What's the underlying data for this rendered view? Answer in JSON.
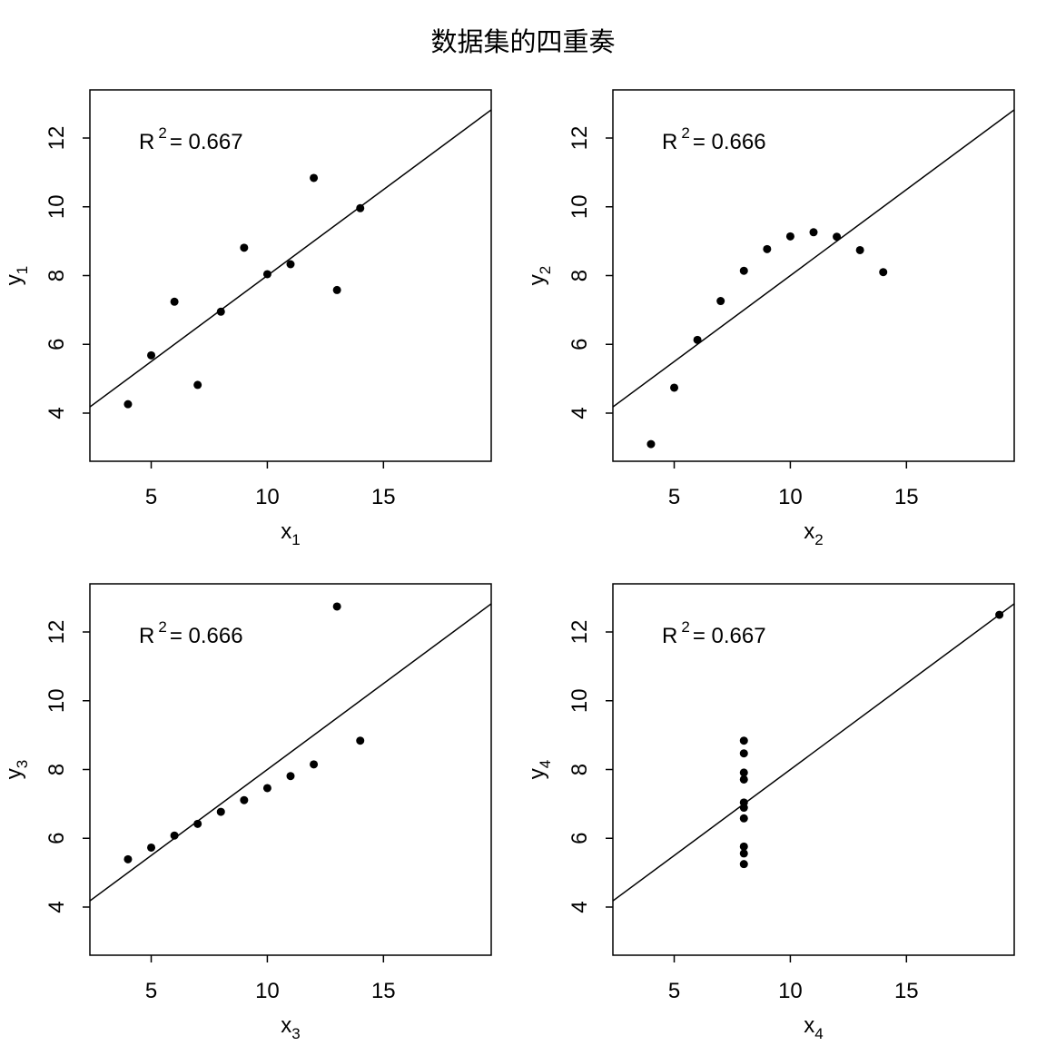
{
  "title": "数据集的四重奏",
  "chart_data": [
    {
      "type": "scatter",
      "xlabel": "x",
      "xlabel_sub": "1",
      "ylabel": "y",
      "ylabel_sub": "1",
      "annotation": {
        "prefix": "R",
        "sup": "2",
        "text": "= 0.667"
      },
      "xlim": [
        3,
        19
      ],
      "ylim": [
        3,
        13
      ],
      "xticks": [
        5,
        10,
        15
      ],
      "yticks": [
        4,
        6,
        8,
        10,
        12
      ],
      "x": [
        10,
        8,
        13,
        9,
        11,
        14,
        6,
        4,
        12,
        7,
        5
      ],
      "y": [
        8.04,
        6.95,
        7.58,
        8.81,
        8.33,
        9.96,
        7.24,
        4.26,
        10.84,
        4.82,
        5.68
      ],
      "fit": {
        "intercept": 3.0,
        "slope": 0.5
      }
    },
    {
      "type": "scatter",
      "xlabel": "x",
      "xlabel_sub": "2",
      "ylabel": "y",
      "ylabel_sub": "2",
      "annotation": {
        "prefix": "R",
        "sup": "2",
        "text": "= 0.666"
      },
      "xlim": [
        3,
        19
      ],
      "ylim": [
        3,
        13
      ],
      "xticks": [
        5,
        10,
        15
      ],
      "yticks": [
        4,
        6,
        8,
        10,
        12
      ],
      "x": [
        10,
        8,
        13,
        9,
        11,
        14,
        6,
        4,
        12,
        7,
        5
      ],
      "y": [
        9.14,
        8.14,
        8.74,
        8.77,
        9.26,
        8.1,
        6.13,
        3.1,
        9.13,
        7.26,
        4.74
      ],
      "fit": {
        "intercept": 3.0,
        "slope": 0.5
      }
    },
    {
      "type": "scatter",
      "xlabel": "x",
      "xlabel_sub": "3",
      "ylabel": "y",
      "ylabel_sub": "3",
      "annotation": {
        "prefix": "R",
        "sup": "2",
        "text": "= 0.666"
      },
      "xlim": [
        3,
        19
      ],
      "ylim": [
        3,
        13
      ],
      "xticks": [
        5,
        10,
        15
      ],
      "yticks": [
        4,
        6,
        8,
        10,
        12
      ],
      "x": [
        10,
        8,
        13,
        9,
        11,
        14,
        6,
        4,
        12,
        7,
        5
      ],
      "y": [
        7.46,
        6.77,
        12.74,
        7.11,
        7.81,
        8.84,
        6.08,
        5.39,
        8.15,
        6.42,
        5.73
      ],
      "fit": {
        "intercept": 3.0,
        "slope": 0.5
      }
    },
    {
      "type": "scatter",
      "xlabel": "x",
      "xlabel_sub": "4",
      "ylabel": "y",
      "ylabel_sub": "4",
      "annotation": {
        "prefix": "R",
        "sup": "2",
        "text": "= 0.667"
      },
      "xlim": [
        3,
        19
      ],
      "ylim": [
        3,
        13
      ],
      "xticks": [
        5,
        10,
        15
      ],
      "yticks": [
        4,
        6,
        8,
        10,
        12
      ],
      "x": [
        8,
        8,
        8,
        8,
        8,
        8,
        8,
        19,
        8,
        8,
        8
      ],
      "y": [
        6.58,
        5.76,
        7.71,
        8.84,
        8.47,
        7.04,
        5.25,
        12.5,
        5.56,
        7.91,
        6.89
      ],
      "fit": {
        "intercept": 3.0,
        "slope": 0.5
      }
    }
  ]
}
